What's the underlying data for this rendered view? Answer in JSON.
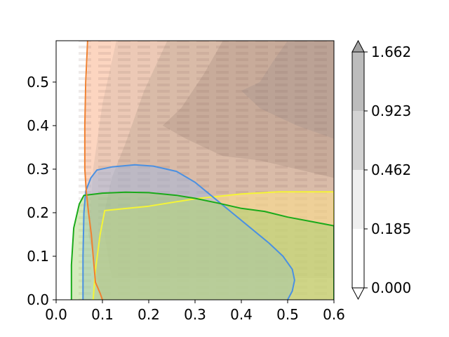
{
  "chart_data": {
    "type": "contour",
    "title": "",
    "xlabel": "",
    "ylabel": "",
    "xlim": [
      0.0,
      0.6
    ],
    "ylim": [
      0.0,
      0.595
    ],
    "xticks": [
      0.0,
      0.1,
      0.2,
      0.3,
      0.4,
      0.5,
      0.6
    ],
    "xtick_labels": [
      "0.0",
      "0.1",
      "0.2",
      "0.3",
      "0.4",
      "0.5",
      "0.6"
    ],
    "yticks": [
      0.0,
      0.1,
      0.2,
      0.3,
      0.4,
      0.5
    ],
    "ytick_labels": [
      "0.0",
      "0.1",
      "0.2",
      "0.3",
      "0.4",
      "0.5"
    ],
    "grid": false,
    "colorbar": {
      "levels": [
        0.0,
        0.185,
        0.462,
        0.923,
        1.662
      ],
      "labels": [
        "0.000",
        "0.185",
        "0.462",
        "0.923",
        "1.662"
      ],
      "colors": [
        "#ffffff",
        "#efefef",
        "#d3d3d3",
        "#bcbcbc",
        "#a3a3a3"
      ],
      "extend": "both"
    },
    "background_region": {
      "color": "#fcd5c0",
      "boundary": [
        [
          0.07,
          0.595
        ],
        [
          0.066,
          0.5
        ],
        [
          0.063,
          0.4
        ],
        [
          0.063,
          0.3
        ],
        [
          0.066,
          0.25
        ],
        [
          0.071,
          0.2
        ],
        [
          0.08,
          0.1
        ],
        [
          0.09,
          0.03
        ],
        [
          0.1,
          0.0
        ],
        [
          0.6,
          0.0
        ],
        [
          0.6,
          0.595
        ]
      ]
    },
    "density_bands": [
      {
        "level": 1,
        "color": "#e9c7b4",
        "boundary": [
          [
            0.13,
            0.595
          ],
          [
            0.1,
            0.45
          ],
          [
            0.08,
            0.3
          ],
          [
            0.07,
            0.15
          ],
          [
            0.1,
            0.0
          ],
          [
            0.6,
            0.0
          ],
          [
            0.6,
            0.595
          ]
        ]
      },
      {
        "level": 2,
        "color": "#d6b8a6",
        "boundary": [
          [
            0.24,
            0.595
          ],
          [
            0.19,
            0.48
          ],
          [
            0.15,
            0.36
          ],
          [
            0.12,
            0.28
          ],
          [
            0.1,
            0.18
          ],
          [
            0.12,
            0.05
          ],
          [
            0.6,
            0.05
          ],
          [
            0.6,
            0.595
          ]
        ]
      },
      {
        "level": 3,
        "color": "#c4a898",
        "boundary": [
          [
            0.36,
            0.595
          ],
          [
            0.32,
            0.52
          ],
          [
            0.27,
            0.44
          ],
          [
            0.23,
            0.4
          ],
          [
            0.28,
            0.37
          ],
          [
            0.36,
            0.33
          ],
          [
            0.44,
            0.32
          ],
          [
            0.6,
            0.28
          ],
          [
            0.6,
            0.595
          ]
        ]
      },
      {
        "level": 4,
        "color": "#b8a094",
        "boundary": [
          [
            0.5,
            0.595
          ],
          [
            0.47,
            0.55
          ],
          [
            0.44,
            0.5
          ],
          [
            0.4,
            0.48
          ],
          [
            0.44,
            0.44
          ],
          [
            0.52,
            0.4
          ],
          [
            0.6,
            0.37
          ],
          [
            0.6,
            0.595
          ]
        ]
      }
    ],
    "series": [
      {
        "color": "#ffe28a",
        "opacity": 0.55,
        "boundary": [
          [
            0.08,
            0.0
          ],
          [
            0.085,
            0.07
          ],
          [
            0.095,
            0.15
          ],
          [
            0.105,
            0.205
          ],
          [
            0.2,
            0.215
          ],
          [
            0.3,
            0.232
          ],
          [
            0.4,
            0.243
          ],
          [
            0.48,
            0.248
          ],
          [
            0.6,
            0.248
          ],
          [
            0.6,
            0.0
          ]
        ],
        "line_color": "#f5f536"
      },
      {
        "color": "#9bb9e6",
        "opacity": 0.45,
        "boundary": [
          [
            0.058,
            0.0
          ],
          [
            0.058,
            0.1
          ],
          [
            0.06,
            0.2
          ],
          [
            0.064,
            0.25
          ],
          [
            0.075,
            0.28
          ],
          [
            0.088,
            0.298
          ],
          [
            0.12,
            0.305
          ],
          [
            0.17,
            0.31
          ],
          [
            0.21,
            0.307
          ],
          [
            0.26,
            0.295
          ],
          [
            0.3,
            0.27
          ],
          [
            0.34,
            0.235
          ],
          [
            0.38,
            0.2
          ],
          [
            0.42,
            0.165
          ],
          [
            0.46,
            0.13
          ],
          [
            0.49,
            0.1
          ],
          [
            0.51,
            0.07
          ],
          [
            0.515,
            0.045
          ],
          [
            0.51,
            0.02
          ],
          [
            0.5,
            0.0
          ]
        ],
        "line_color": "#4a90e2"
      },
      {
        "color": "#9fd36a",
        "opacity": 0.45,
        "boundary": [
          [
            0.033,
            0.0
          ],
          [
            0.033,
            0.08
          ],
          [
            0.038,
            0.165
          ],
          [
            0.05,
            0.22
          ],
          [
            0.06,
            0.24
          ],
          [
            0.1,
            0.245
          ],
          [
            0.15,
            0.247
          ],
          [
            0.2,
            0.246
          ],
          [
            0.26,
            0.24
          ],
          [
            0.3,
            0.233
          ],
          [
            0.35,
            0.222
          ],
          [
            0.4,
            0.21
          ],
          [
            0.45,
            0.203
          ],
          [
            0.5,
            0.19
          ],
          [
            0.55,
            0.18
          ],
          [
            0.6,
            0.17
          ],
          [
            0.6,
            0.0
          ]
        ],
        "line_color": "#1aaa1a"
      },
      {
        "color": "none",
        "opacity": 0,
        "boundary": [
          [
            0.068,
            0.595
          ],
          [
            0.064,
            0.5
          ],
          [
            0.062,
            0.4
          ],
          [
            0.062,
            0.3
          ],
          [
            0.065,
            0.25
          ],
          [
            0.07,
            0.2
          ],
          [
            0.076,
            0.15
          ],
          [
            0.08,
            0.1
          ],
          [
            0.085,
            0.04
          ],
          [
            0.095,
            0.015
          ],
          [
            0.1,
            0.0
          ]
        ],
        "line_color": "#f08030",
        "open": true
      }
    ]
  }
}
